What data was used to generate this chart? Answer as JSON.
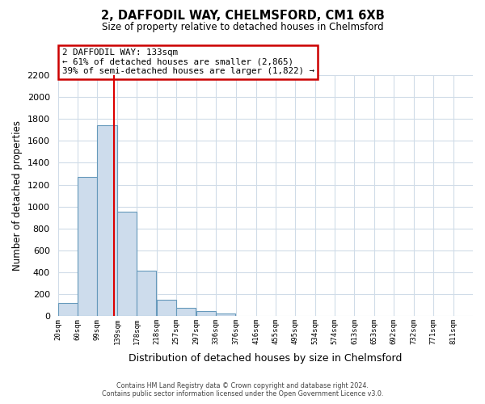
{
  "title1": "2, DAFFODIL WAY, CHELMSFORD, CM1 6XB",
  "title2": "Size of property relative to detached houses in Chelmsford",
  "xlabel": "Distribution of detached houses by size in Chelmsford",
  "ylabel": "Number of detached properties",
  "bar_left_edges": [
    20,
    60,
    99,
    139,
    178,
    218,
    257,
    297,
    336,
    376,
    416,
    455,
    495,
    534,
    574,
    613,
    653,
    692,
    732,
    771
  ],
  "bar_widths": [
    39,
    39,
    39,
    39,
    39,
    39,
    39,
    39,
    39,
    39,
    39,
    39,
    39,
    39,
    39,
    39,
    39,
    39,
    39,
    39
  ],
  "bar_heights": [
    120,
    1270,
    1740,
    950,
    415,
    150,
    75,
    40,
    20,
    0,
    0,
    0,
    0,
    0,
    0,
    0,
    0,
    0,
    0,
    0
  ],
  "bar_color": "#cddcec",
  "bar_edge_color": "#6699bb",
  "x_tick_labels": [
    "20sqm",
    "60sqm",
    "99sqm",
    "139sqm",
    "178sqm",
    "218sqm",
    "257sqm",
    "297sqm",
    "336sqm",
    "376sqm",
    "416sqm",
    "455sqm",
    "495sqm",
    "534sqm",
    "574sqm",
    "613sqm",
    "653sqm",
    "692sqm",
    "732sqm",
    "771sqm",
    "811sqm"
  ],
  "x_tick_positions": [
    20,
    60,
    99,
    139,
    178,
    218,
    257,
    297,
    336,
    376,
    416,
    455,
    495,
    534,
    574,
    613,
    653,
    692,
    732,
    771,
    811
  ],
  "ylim": [
    0,
    2200
  ],
  "yticks": [
    0,
    200,
    400,
    600,
    800,
    1000,
    1200,
    1400,
    1600,
    1800,
    2000,
    2200
  ],
  "vline_x": 133,
  "vline_color": "#dd0000",
  "annotation_title": "2 DAFFODIL WAY: 133sqm",
  "annotation_line1": "← 61% of detached houses are smaller (2,865)",
  "annotation_line2": "39% of semi-detached houses are larger (1,822) →",
  "annotation_box_color": "#ffffff",
  "annotation_box_edge_color": "#cc0000",
  "footer1": "Contains HM Land Registry data © Crown copyright and database right 2024.",
  "footer2": "Contains public sector information licensed under the Open Government Licence v3.0.",
  "fig_bg_color": "#ffffff",
  "plot_bg_color": "#ffffff",
  "grid_color": "#d0dce8"
}
